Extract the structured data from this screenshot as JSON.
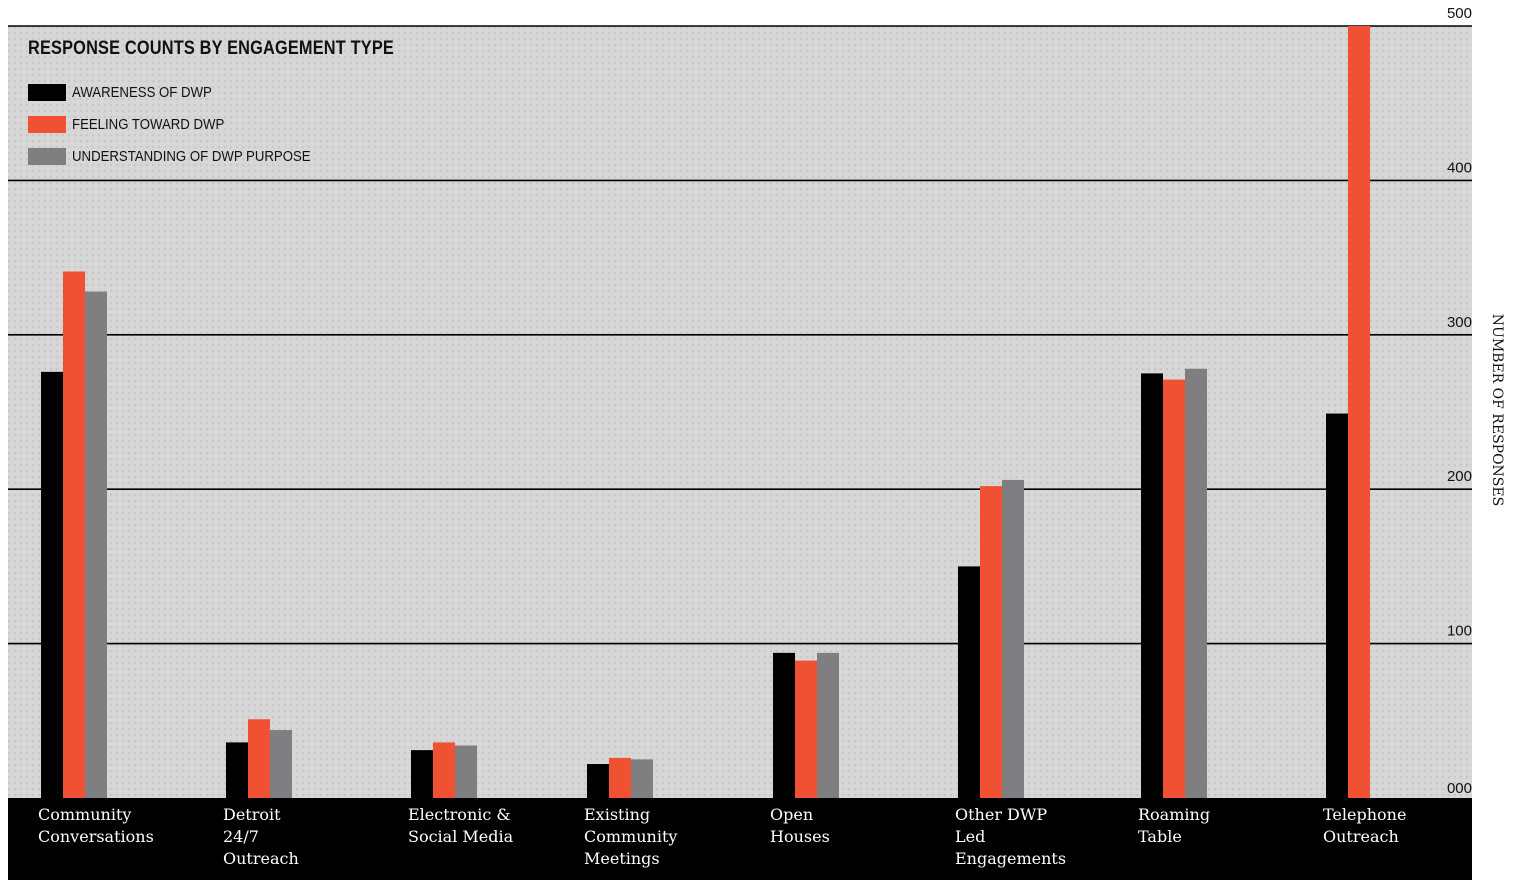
{
  "chart_data": {
    "type": "bar",
    "title": "RESPONSE COUNTS BY ENGAGEMENT TYPE",
    "xlabel": "",
    "ylabel": "NUMBER OF RESPONSES",
    "ylim": [
      0,
      500
    ],
    "yticks": [
      0,
      100,
      200,
      300,
      400,
      500
    ],
    "ytick_labels": [
      "000",
      "100",
      "200",
      "300",
      "400",
      "500"
    ],
    "grid": true,
    "legend_position": "top-left",
    "categories": [
      [
        "Community",
        "Conversations"
      ],
      [
        "Detroit",
        "24/7",
        "Outreach"
      ],
      [
        "Electronic &",
        "Social Media"
      ],
      [
        "Existing",
        "Community",
        "Meetings"
      ],
      [
        "Open",
        "Houses"
      ],
      [
        "Other DWP",
        "Led",
        "Engagements"
      ],
      [
        "Roaming",
        "Table"
      ],
      [
        "Telephone",
        "Outreach"
      ]
    ],
    "series": [
      {
        "name": "AWARENESS OF DWP",
        "color": "#000000",
        "values": [
          276,
          36,
          31,
          22,
          94,
          150,
          275,
          249
        ]
      },
      {
        "name": "FEELING TOWARD DWP",
        "color": "#f05133",
        "values": [
          341,
          51,
          36,
          26,
          89,
          202,
          271,
          500
        ]
      },
      {
        "name": "UNDERSTANDING OF DWP PURPOSE",
        "color": "#7f7e81",
        "values": [
          328,
          44,
          34,
          25,
          94,
          206,
          278,
          0
        ]
      }
    ]
  },
  "style": {
    "background_photo_tint": "#c9c9c9",
    "axis_band_color": "#000000",
    "gridline_color": "#000000"
  }
}
